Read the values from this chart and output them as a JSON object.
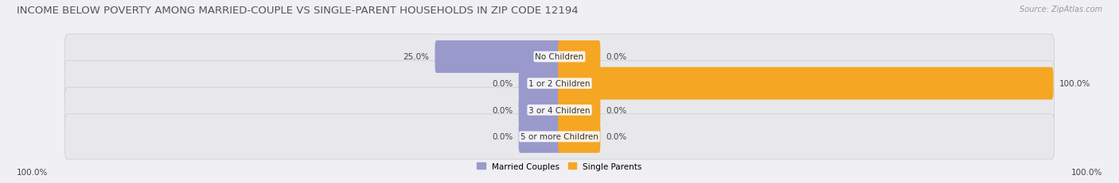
{
  "title": "INCOME BELOW POVERTY AMONG MARRIED-COUPLE VS SINGLE-PARENT HOUSEHOLDS IN ZIP CODE 12194",
  "source": "Source: ZipAtlas.com",
  "categories": [
    "No Children",
    "1 or 2 Children",
    "3 or 4 Children",
    "5 or more Children"
  ],
  "married_values": [
    25.0,
    0.0,
    0.0,
    0.0
  ],
  "single_values": [
    0.0,
    100.0,
    0.0,
    0.0
  ],
  "married_color": "#9999cc",
  "single_color": "#f5a623",
  "bar_bg_color": "#e8e8ec",
  "xlim": 100,
  "min_bar": 8,
  "title_fontsize": 9.5,
  "label_fontsize": 7.5,
  "category_fontsize": 7.5,
  "bar_height": 0.62,
  "legend_married": "Married Couples",
  "legend_single": "Single Parents"
}
